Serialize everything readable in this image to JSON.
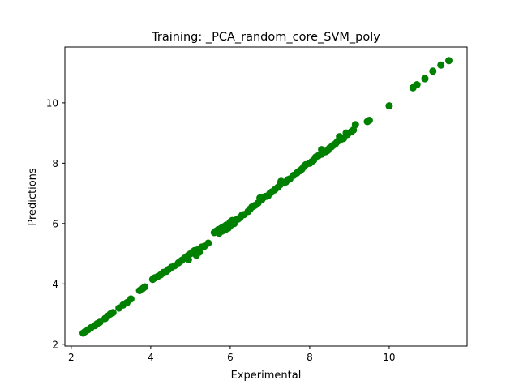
{
  "chart_data": {
    "type": "scatter",
    "title": "Training: _PCA_random_core_SVM_poly",
    "xlabel": "Experimental",
    "ylabel": "Predictions",
    "xlim": [
      1.84,
      11.96
    ],
    "ylim": [
      1.94,
      11.85
    ],
    "xticks": [
      2,
      4,
      6,
      8,
      10
    ],
    "yticks": [
      2,
      4,
      6,
      8,
      10
    ],
    "grid": false,
    "marker_color": "#008000",
    "series": [
      {
        "points": [
          [
            2.3,
            2.37
          ],
          [
            2.35,
            2.42
          ],
          [
            2.42,
            2.48
          ],
          [
            2.5,
            2.55
          ],
          [
            2.6,
            2.62
          ],
          [
            2.65,
            2.68
          ],
          [
            2.72,
            2.73
          ],
          [
            2.85,
            2.85
          ],
          [
            2.92,
            2.93
          ],
          [
            2.98,
            3.0
          ],
          [
            3.05,
            3.05
          ],
          [
            3.2,
            3.2
          ],
          [
            3.3,
            3.3
          ],
          [
            3.4,
            3.38
          ],
          [
            3.5,
            3.5
          ],
          [
            3.72,
            3.78
          ],
          [
            3.8,
            3.85
          ],
          [
            3.85,
            3.9
          ],
          [
            4.05,
            4.15
          ],
          [
            4.1,
            4.2
          ],
          [
            4.18,
            4.25
          ],
          [
            4.25,
            4.3
          ],
          [
            4.32,
            4.38
          ],
          [
            4.4,
            4.42
          ],
          [
            4.45,
            4.48
          ],
          [
            4.52,
            4.55
          ],
          [
            4.6,
            4.6
          ],
          [
            4.7,
            4.7
          ],
          [
            4.78,
            4.78
          ],
          [
            4.85,
            4.85
          ],
          [
            4.9,
            4.9
          ],
          [
            4.95,
            4.95
          ],
          [
            5.0,
            5.0
          ],
          [
            5.05,
            5.05
          ],
          [
            4.95,
            4.8
          ],
          [
            5.1,
            5.1
          ],
          [
            5.15,
            4.95
          ],
          [
            5.2,
            5.15
          ],
          [
            5.28,
            5.22
          ],
          [
            5.35,
            5.25
          ],
          [
            5.22,
            5.05
          ],
          [
            5.45,
            5.35
          ],
          [
            5.6,
            5.7
          ],
          [
            5.65,
            5.75
          ],
          [
            5.7,
            5.8
          ],
          [
            5.72,
            5.68
          ],
          [
            5.78,
            5.85
          ],
          [
            5.8,
            5.75
          ],
          [
            5.85,
            5.9
          ],
          [
            5.88,
            5.8
          ],
          [
            5.9,
            5.95
          ],
          [
            5.95,
            5.85
          ],
          [
            6.0,
            6.05
          ],
          [
            6.02,
            5.95
          ],
          [
            6.05,
            6.1
          ],
          [
            6.1,
            6.0
          ],
          [
            6.12,
            6.05
          ],
          [
            6.15,
            6.12
          ],
          [
            6.2,
            6.15
          ],
          [
            6.25,
            6.2
          ],
          [
            6.3,
            6.28
          ],
          [
            6.35,
            6.3
          ],
          [
            6.45,
            6.4
          ],
          [
            6.5,
            6.48
          ],
          [
            6.55,
            6.55
          ],
          [
            6.62,
            6.6
          ],
          [
            6.7,
            6.68
          ],
          [
            6.75,
            6.85
          ],
          [
            6.8,
            6.8
          ],
          [
            6.85,
            6.88
          ],
          [
            6.9,
            6.9
          ],
          [
            6.95,
            6.92
          ],
          [
            7.0,
            7.0
          ],
          [
            7.05,
            7.05
          ],
          [
            7.12,
            7.12
          ],
          [
            7.2,
            7.2
          ],
          [
            7.25,
            7.28
          ],
          [
            7.28,
            7.4
          ],
          [
            7.35,
            7.35
          ],
          [
            7.4,
            7.38
          ],
          [
            7.45,
            7.45
          ],
          [
            7.5,
            7.48
          ],
          [
            7.6,
            7.6
          ],
          [
            7.68,
            7.68
          ],
          [
            7.75,
            7.75
          ],
          [
            7.8,
            7.8
          ],
          [
            7.85,
            7.88
          ],
          [
            7.9,
            7.95
          ],
          [
            8.0,
            8.0
          ],
          [
            8.05,
            8.05
          ],
          [
            8.1,
            8.1
          ],
          [
            8.15,
            8.2
          ],
          [
            8.22,
            8.25
          ],
          [
            8.3,
            8.3
          ],
          [
            8.35,
            8.38
          ],
          [
            8.4,
            8.38
          ],
          [
            8.3,
            8.45
          ],
          [
            8.45,
            8.42
          ],
          [
            8.5,
            8.5
          ],
          [
            8.55,
            8.55
          ],
          [
            8.6,
            8.6
          ],
          [
            8.65,
            8.65
          ],
          [
            8.7,
            8.72
          ],
          [
            8.75,
            8.88
          ],
          [
            8.8,
            8.8
          ],
          [
            8.85,
            8.82
          ],
          [
            8.92,
            9.0
          ],
          [
            8.95,
            8.95
          ],
          [
            9.05,
            9.05
          ],
          [
            9.1,
            9.1
          ],
          [
            9.15,
            9.28
          ],
          [
            9.45,
            9.38
          ],
          [
            9.5,
            9.42
          ],
          [
            10.0,
            9.9
          ],
          [
            10.6,
            10.5
          ],
          [
            10.7,
            10.6
          ],
          [
            10.9,
            10.8
          ],
          [
            11.1,
            11.05
          ],
          [
            11.3,
            11.25
          ],
          [
            11.5,
            11.4
          ]
        ]
      }
    ]
  }
}
